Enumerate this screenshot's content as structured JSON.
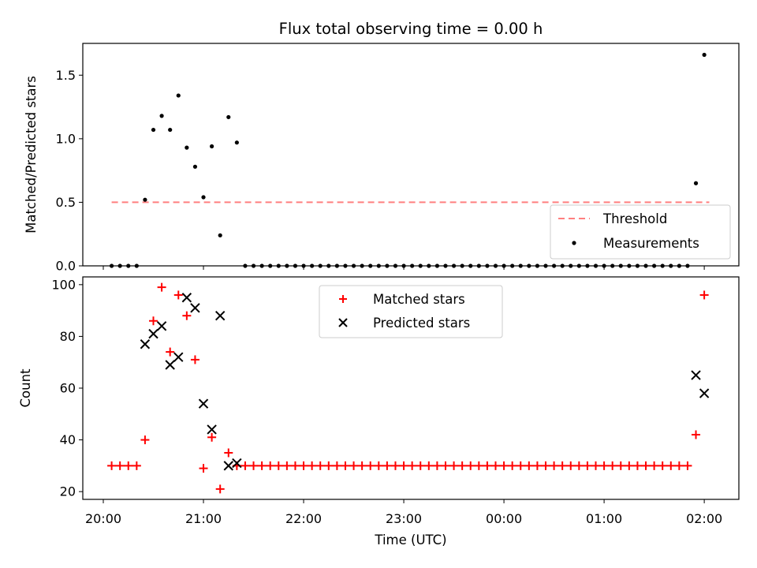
{
  "title": "Flux total observing time = 0.00 h",
  "colors": {
    "threshold": "#ff7f7f",
    "measurement": "#000000",
    "matched": "#ff0000",
    "predicted": "#000000"
  },
  "chart_data": [
    {
      "type": "scatter",
      "ylabel": "Matched/Predicted stars",
      "xlim": [
        "19:52",
        "02:18"
      ],
      "ylim": [
        0,
        1.75
      ],
      "y_ticks": [
        "0.0",
        "0.5",
        "1.0",
        "1.5"
      ],
      "legend": {
        "placement": "lower-right",
        "entries": [
          "Threshold",
          "Measurements"
        ]
      },
      "series": [
        {
          "name": "Threshold",
          "kind": "line",
          "x": [
            "20:05",
            "02:03"
          ],
          "y": [
            0.5,
            0.5
          ]
        },
        {
          "name": "Measurements",
          "kind": "scatter",
          "points": [
            [
              "20:05",
              0
            ],
            [
              "20:10",
              0
            ],
            [
              "20:15",
              0
            ],
            [
              "20:20",
              0
            ],
            [
              "20:25",
              0.52
            ],
            [
              "20:30",
              1.07
            ],
            [
              "20:35",
              1.18
            ],
            [
              "20:40",
              1.07
            ],
            [
              "20:45",
              1.34
            ],
            [
              "20:50",
              0.93
            ],
            [
              "20:55",
              0.78
            ],
            [
              "21:00",
              0.54
            ],
            [
              "21:05",
              0.94
            ],
            [
              "21:10",
              0.24
            ],
            [
              "21:15",
              1.17
            ],
            [
              "21:20",
              0.97
            ],
            [
              "21:25",
              0
            ],
            [
              "21:30",
              0
            ],
            [
              "21:35",
              0
            ],
            [
              "21:40",
              0
            ],
            [
              "21:45",
              0
            ],
            [
              "21:50",
              0
            ],
            [
              "21:55",
              0
            ],
            [
              "22:00",
              0
            ],
            [
              "22:05",
              0
            ],
            [
              "22:10",
              0
            ],
            [
              "22:15",
              0
            ],
            [
              "22:20",
              0
            ],
            [
              "22:25",
              0
            ],
            [
              "22:30",
              0
            ],
            [
              "22:35",
              0
            ],
            [
              "22:40",
              0
            ],
            [
              "22:45",
              0
            ],
            [
              "22:50",
              0
            ],
            [
              "22:55",
              0
            ],
            [
              "23:00",
              0
            ],
            [
              "23:05",
              0
            ],
            [
              "23:10",
              0
            ],
            [
              "23:15",
              0
            ],
            [
              "23:20",
              0
            ],
            [
              "23:25",
              0
            ],
            [
              "23:30",
              0
            ],
            [
              "23:35",
              0
            ],
            [
              "23:40",
              0
            ],
            [
              "23:45",
              0
            ],
            [
              "23:50",
              0
            ],
            [
              "23:55",
              0
            ],
            [
              "00:00",
              0
            ],
            [
              "00:05",
              0
            ],
            [
              "00:10",
              0
            ],
            [
              "00:15",
              0
            ],
            [
              "00:20",
              0
            ],
            [
              "00:25",
              0
            ],
            [
              "00:30",
              0
            ],
            [
              "00:35",
              0
            ],
            [
              "00:40",
              0
            ],
            [
              "00:45",
              0
            ],
            [
              "00:50",
              0
            ],
            [
              "00:55",
              0
            ],
            [
              "01:00",
              0
            ],
            [
              "01:05",
              0
            ],
            [
              "01:10",
              0
            ],
            [
              "01:15",
              0
            ],
            [
              "01:20",
              0
            ],
            [
              "01:25",
              0
            ],
            [
              "01:30",
              0
            ],
            [
              "01:35",
              0
            ],
            [
              "01:40",
              0
            ],
            [
              "01:45",
              0
            ],
            [
              "01:50",
              0
            ],
            [
              "01:55",
              0.65
            ],
            [
              "02:00",
              1.66
            ]
          ]
        }
      ]
    },
    {
      "type": "scatter",
      "xlabel": "Time (UTC)",
      "ylabel": "Count",
      "xlim": [
        "19:52",
        "02:18"
      ],
      "ylim": [
        17,
        103
      ],
      "x_ticks": [
        "20:00",
        "21:00",
        "22:00",
        "23:00",
        "00:00",
        "01:00",
        "02:00"
      ],
      "y_ticks": [
        "20",
        "40",
        "60",
        "80",
        "100"
      ],
      "legend": {
        "placement": "upper-center",
        "entries": [
          "Matched stars",
          "Predicted stars"
        ]
      },
      "series": [
        {
          "name": "Matched stars",
          "marker": "plus",
          "points": [
            [
              "20:05",
              30
            ],
            [
              "20:10",
              30
            ],
            [
              "20:15",
              30
            ],
            [
              "20:20",
              30
            ],
            [
              "20:25",
              40
            ],
            [
              "20:30",
              86
            ],
            [
              "20:35",
              99
            ],
            [
              "20:40",
              74
            ],
            [
              "20:45",
              96
            ],
            [
              "20:50",
              88
            ],
            [
              "20:55",
              71
            ],
            [
              "21:00",
              29
            ],
            [
              "21:05",
              41
            ],
            [
              "21:10",
              21
            ],
            [
              "21:15",
              35
            ],
            [
              "21:20",
              30
            ],
            [
              "21:25",
              30
            ],
            [
              "21:30",
              30
            ],
            [
              "21:35",
              30
            ],
            [
              "21:40",
              30
            ],
            [
              "21:45",
              30
            ],
            [
              "21:50",
              30
            ],
            [
              "21:55",
              30
            ],
            [
              "22:00",
              30
            ],
            [
              "22:05",
              30
            ],
            [
              "22:10",
              30
            ],
            [
              "22:15",
              30
            ],
            [
              "22:20",
              30
            ],
            [
              "22:25",
              30
            ],
            [
              "22:30",
              30
            ],
            [
              "22:35",
              30
            ],
            [
              "22:40",
              30
            ],
            [
              "22:45",
              30
            ],
            [
              "22:50",
              30
            ],
            [
              "22:55",
              30
            ],
            [
              "23:00",
              30
            ],
            [
              "23:05",
              30
            ],
            [
              "23:10",
              30
            ],
            [
              "23:15",
              30
            ],
            [
              "23:20",
              30
            ],
            [
              "23:25",
              30
            ],
            [
              "23:30",
              30
            ],
            [
              "23:35",
              30
            ],
            [
              "23:40",
              30
            ],
            [
              "23:45",
              30
            ],
            [
              "23:50",
              30
            ],
            [
              "23:55",
              30
            ],
            [
              "00:00",
              30
            ],
            [
              "00:05",
              30
            ],
            [
              "00:10",
              30
            ],
            [
              "00:15",
              30
            ],
            [
              "00:20",
              30
            ],
            [
              "00:25",
              30
            ],
            [
              "00:30",
              30
            ],
            [
              "00:35",
              30
            ],
            [
              "00:40",
              30
            ],
            [
              "00:45",
              30
            ],
            [
              "00:50",
              30
            ],
            [
              "00:55",
              30
            ],
            [
              "01:00",
              30
            ],
            [
              "01:05",
              30
            ],
            [
              "01:10",
              30
            ],
            [
              "01:15",
              30
            ],
            [
              "01:20",
              30
            ],
            [
              "01:25",
              30
            ],
            [
              "01:30",
              30
            ],
            [
              "01:35",
              30
            ],
            [
              "01:40",
              30
            ],
            [
              "01:45",
              30
            ],
            [
              "01:50",
              30
            ],
            [
              "01:55",
              42
            ],
            [
              "02:00",
              96
            ]
          ]
        },
        {
          "name": "Predicted stars",
          "marker": "x",
          "points": [
            [
              "20:25",
              77
            ],
            [
              "20:30",
              81
            ],
            [
              "20:35",
              84
            ],
            [
              "20:40",
              69
            ],
            [
              "20:45",
              72
            ],
            [
              "20:50",
              95
            ],
            [
              "20:55",
              91
            ],
            [
              "21:00",
              54
            ],
            [
              "21:05",
              44
            ],
            [
              "21:10",
              88
            ],
            [
              "21:15",
              30
            ],
            [
              "21:20",
              31
            ],
            [
              "01:55",
              65
            ],
            [
              "02:00",
              58
            ]
          ]
        }
      ]
    }
  ]
}
